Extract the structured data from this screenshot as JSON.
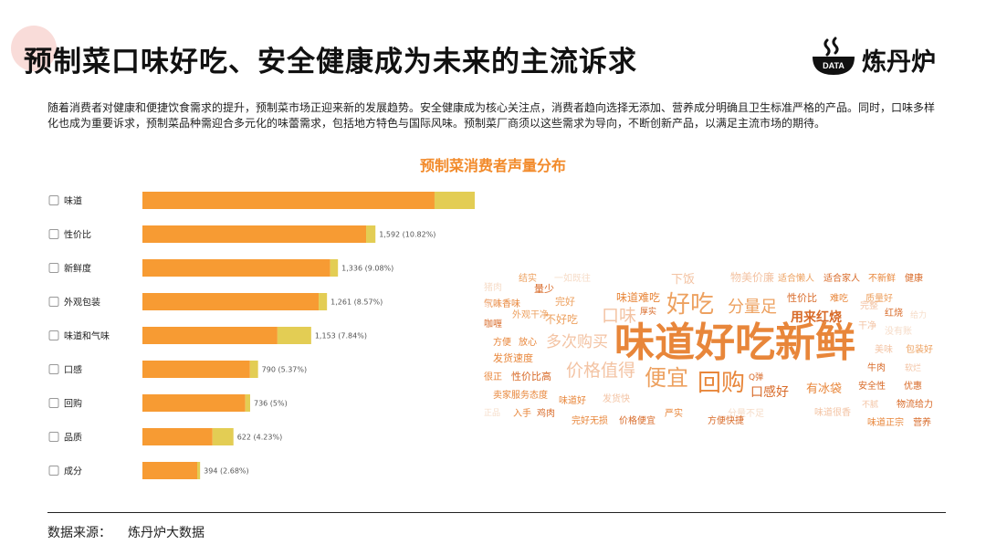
{
  "header": {
    "title": "预制菜口味好吃、安全健康成为未来的主流诉求",
    "logo_text": "炼丹炉",
    "logo_badge": "DATA"
  },
  "intro": "随着消费者对健康和便捷饮食需求的提升，预制菜市场正迎来新的发展趋势。安全健康成为核心关注点，消费者趋向选择无添加、营养成分明确且卫生标准严格的产品。同时，口味多样化也成为重要诉求，预制菜品种需迎合多元化的味蕾需求，包括地方特色与国际风味。预制菜厂商须以这些需求为导向，不断创新产品，以满足主流市场的期待。",
  "source": {
    "label": "数据来源：",
    "value": "炼丹炉大数据"
  },
  "colors": {
    "primary": "#f79b33",
    "secondary": "#e3cd54",
    "title": "#f28a2a"
  },
  "chart_data": {
    "type": "bar",
    "orientation": "horizontal",
    "stacked": true,
    "title": "预制菜消费者声量分布",
    "categories": [
      "味道",
      "性价比",
      "新鲜度",
      "外观包装",
      "味道和气味",
      "口感",
      "回购",
      "品质",
      "成分"
    ],
    "values": [
      2626,
      1592,
      1336,
      1261,
      1153,
      790,
      736,
      622,
      394
    ],
    "value_labels": [
      "2,626\n(17.85%)",
      "1,592 (10.82%)",
      "1,336 (9.08%)",
      "1,261 (8.57%)",
      "1,153 (7.84%)",
      "790 (5.37%)",
      "736 (5%)",
      "622 (4.23%)",
      "394 (2.68%)"
    ],
    "secondary_share": [
      0.24,
      0.04,
      0.04,
      0.045,
      0.2,
      0.07,
      0.045,
      0.23,
      0.05
    ],
    "grid": false,
    "legend": "none"
  },
  "word_cloud": [
    {
      "text": "味道好吃新鲜",
      "size": 44,
      "color": "#e8863a",
      "bold": true
    },
    {
      "text": "好吃",
      "size": 26,
      "color": "#eda160"
    },
    {
      "text": "回购",
      "size": 26,
      "color": "#e8863a"
    },
    {
      "text": "便宜",
      "size": 24,
      "color": "#eda160"
    },
    {
      "text": "价格值得",
      "size": 19,
      "color": "#f3c3a3"
    },
    {
      "text": "口味",
      "size": 19,
      "color": "#f3c3a3"
    },
    {
      "text": "分量足",
      "size": 18,
      "color": "#eda160"
    },
    {
      "text": "多次购买",
      "size": 17,
      "color": "#f3c3a3"
    },
    {
      "text": "用来红烧",
      "size": 14,
      "color": "#d86a28",
      "bold": true
    },
    {
      "text": "口感好",
      "size": 14,
      "color": "#d86a28"
    },
    {
      "text": "有冰袋",
      "size": 13,
      "color": "#e8863a"
    },
    {
      "text": "下饭",
      "size": 13,
      "color": "#f3c3a3"
    },
    {
      "text": "物美价廉",
      "size": 12,
      "color": "#f3c3a3"
    },
    {
      "text": "味道难吃",
      "size": 12,
      "color": "#e8863a"
    },
    {
      "text": "不好吃",
      "size": 12,
      "color": "#eda160"
    },
    {
      "text": "完好",
      "size": 11,
      "color": "#eda160"
    },
    {
      "text": "量少",
      "size": 11,
      "color": "#d86a28"
    },
    {
      "text": "结实",
      "size": 10,
      "color": "#eda160"
    },
    {
      "text": "一如既往",
      "size": 10,
      "color": "#f6dcc8"
    },
    {
      "text": "适合懒人",
      "size": 10,
      "color": "#eda160"
    },
    {
      "text": "适合家人",
      "size": 10,
      "color": "#d86a28"
    },
    {
      "text": "不新鲜",
      "size": 10,
      "color": "#e8863a"
    },
    {
      "text": "健康",
      "size": 10,
      "color": "#d86a28"
    },
    {
      "text": "猪肉",
      "size": 10,
      "color": "#f6dcc8"
    },
    {
      "text": "气味香味",
      "size": 10,
      "color": "#e8863a"
    },
    {
      "text": "性价比",
      "size": 11,
      "color": "#d86a28"
    },
    {
      "text": "难吃",
      "size": 10,
      "color": "#e8863a"
    },
    {
      "text": "质量好",
      "size": 10,
      "color": "#eda160"
    },
    {
      "text": "家人",
      "size": 10,
      "color": "#f3c3a3"
    },
    {
      "text": "外观干净",
      "size": 10,
      "color": "#eda160"
    },
    {
      "text": "厚实",
      "size": 9,
      "color": "#d86a28"
    },
    {
      "text": "完整",
      "size": 10,
      "color": "#f3c3a3"
    },
    {
      "text": "给力",
      "size": 9,
      "color": "#f6dcc8"
    },
    {
      "text": "咖喱",
      "size": 10,
      "color": "#d86a28"
    },
    {
      "text": "干净",
      "size": 10,
      "color": "#f3c3a3"
    },
    {
      "text": "红烧",
      "size": 10,
      "color": "#d86a28"
    },
    {
      "text": "方便",
      "size": 10,
      "color": "#e8863a"
    },
    {
      "text": "放心",
      "size": 10,
      "color": "#e8863a"
    },
    {
      "text": "没有账",
      "size": 10,
      "color": "#f6dcc8"
    },
    {
      "text": "发货速度",
      "size": 11,
      "color": "#e8863a"
    },
    {
      "text": "美味",
      "size": 10,
      "color": "#f3c3a3"
    },
    {
      "text": "包装好",
      "size": 10,
      "color": "#eda160"
    },
    {
      "text": "牛肉",
      "size": 10,
      "color": "#d86a28"
    },
    {
      "text": "软烂",
      "size": 9,
      "color": "#f3c3a3"
    },
    {
      "text": "很正",
      "size": 10,
      "color": "#e8863a"
    },
    {
      "text": "性价比高",
      "size": 11,
      "color": "#d86a28"
    },
    {
      "text": "Q弹",
      "size": 9,
      "color": "#d86a28"
    },
    {
      "text": "安全性",
      "size": 10,
      "color": "#d86a28"
    },
    {
      "text": "优惠",
      "size": 10,
      "color": "#d86a28"
    },
    {
      "text": "卖家服务态度",
      "size": 10,
      "color": "#e8863a"
    },
    {
      "text": "发货快",
      "size": 10,
      "color": "#f3c3a3"
    },
    {
      "text": "不腻",
      "size": 9,
      "color": "#f3c3a3"
    },
    {
      "text": "物流给力",
      "size": 10,
      "color": "#d86a28"
    },
    {
      "text": "味道好",
      "size": 10,
      "color": "#e8863a"
    },
    {
      "text": "严实",
      "size": 10,
      "color": "#e8863a"
    },
    {
      "text": "分量不足",
      "size": 10,
      "color": "#f6dcc8"
    },
    {
      "text": "味道很香",
      "size": 10,
      "color": "#f3c3a3"
    },
    {
      "text": "正品",
      "size": 9,
      "color": "#f6dcc8"
    },
    {
      "text": "入手",
      "size": 10,
      "color": "#e8863a"
    },
    {
      "text": "鸡肉",
      "size": 10,
      "color": "#d86a28"
    },
    {
      "text": "完好无损",
      "size": 10,
      "color": "#e8863a"
    },
    {
      "text": "价格便宜",
      "size": 10,
      "color": "#d86a28"
    },
    {
      "text": "方便快捷",
      "size": 10,
      "color": "#d86a28"
    },
    {
      "text": "味道正宗",
      "size": 10,
      "color": "#e8863a"
    },
    {
      "text": "营养",
      "size": 10,
      "color": "#d86a28"
    }
  ]
}
